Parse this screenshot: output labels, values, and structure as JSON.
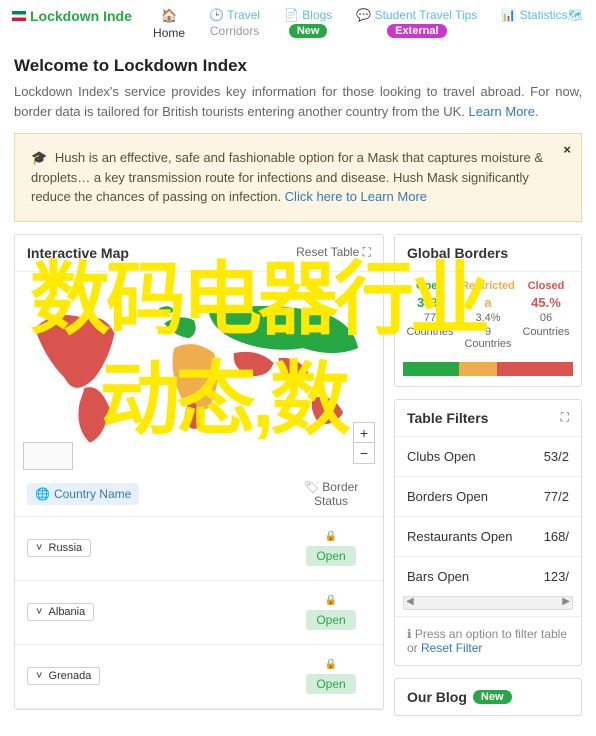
{
  "nav": {
    "brand": "Lockdown Inde",
    "items": [
      {
        "icon": "🏠",
        "label": "",
        "sub": "Home",
        "sub_muted": false
      },
      {
        "icon": "🕒",
        "label": "Travel",
        "sub": "Corridors",
        "sub_muted": true
      },
      {
        "icon": "📄",
        "label": "Blogs",
        "badge": "New",
        "badge_class": "new"
      },
      {
        "icon": "💬",
        "label": "Student Travel Tips",
        "badge": "External",
        "badge_class": "ext"
      },
      {
        "icon": "📊",
        "label": "Statistics",
        "trail_icon": "🗺"
      }
    ]
  },
  "welcome": {
    "title": "Welcome to Lockdown Index",
    "text": "Lockdown Index's service provides key information for those looking to travel abroad. For now, border data is tailored for British tourists entering another country from the UK. ",
    "learn_more": "Learn More."
  },
  "alert": {
    "text": "Hush is an effective, safe and fashionable option for a Mask that captures moisture & droplets… a key transmission route for infections and disease. Hush Mask significantly reduce the chances of passing on infection. ",
    "link": "Click here to Learn More"
  },
  "map": {
    "title": "Interactive Map",
    "reset": "Reset Table ⛶",
    "th_country": "Country Name",
    "th_status": "Border Status",
    "countries": [
      {
        "name": "Russia",
        "status": "Open"
      },
      {
        "name": "Albania",
        "status": "Open"
      },
      {
        "name": "Grenada",
        "status": "Open"
      }
    ],
    "colors": {
      "open": "#28a745",
      "restricted": "#f0ad4e",
      "closed": "#d9534f",
      "land": "#ccc"
    }
  },
  "global_borders": {
    "title": "Global Borders",
    "stats": [
      {
        "label": "Open",
        "pct": "33%",
        "sub1": "77",
        "sub2": "Countries",
        "class": "open"
      },
      {
        "label": "Restricted",
        "pct": "a",
        "sub1": "3.4%",
        "sub2": "9 Countries",
        "class": "res"
      },
      {
        "label": "Closed",
        "pct": "45.%",
        "sub1": "06",
        "sub2": "Countries",
        "class": "closed"
      }
    ],
    "bar": [
      33,
      22,
      45
    ]
  },
  "filters": {
    "title": "Table Filters",
    "expand": "⛶",
    "rows": [
      {
        "label": "Clubs Open",
        "value": "53/2"
      },
      {
        "label": "Borders Open",
        "value": "77/2"
      },
      {
        "label": "Restaurants Open",
        "value": "168/"
      },
      {
        "label": "Bars Open",
        "value": "123/"
      }
    ],
    "footer_text": "Press an option to filter table or ",
    "footer_link": "Reset Filter"
  },
  "blog": {
    "title": "Our Blog",
    "badge": "New"
  },
  "overlay": {
    "line1": "数码电器行业",
    "line2": "动态,数"
  }
}
